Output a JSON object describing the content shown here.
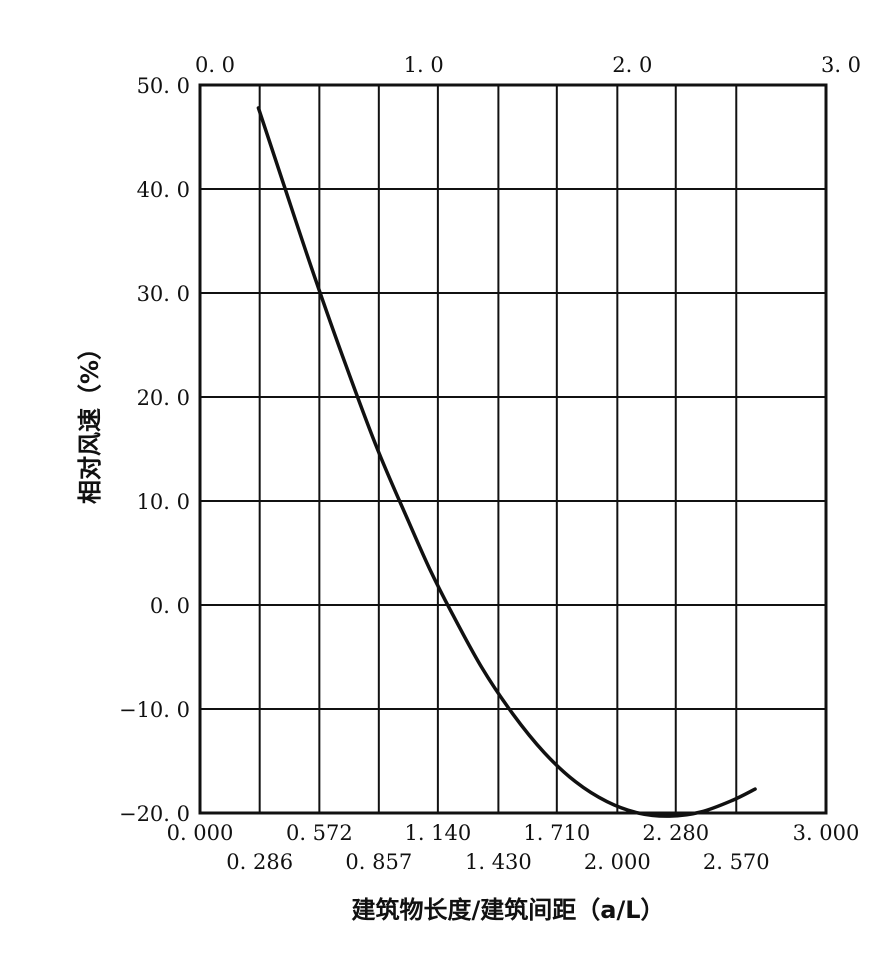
{
  "chart_data": {
    "type": "line",
    "ylabel": "相对风速（%）",
    "xlabel": "建筑物长度/建筑间距（a/L）",
    "xlim": [
      0,
      3
    ],
    "ylim": [
      -20,
      50
    ],
    "grid": true,
    "top_ticks": [
      "0. 0",
      "1. 0",
      "2. 0",
      "3. 0"
    ],
    "y_ticks": [
      {
        "value": 50,
        "label": "50. 0"
      },
      {
        "value": 40,
        "label": "40. 0"
      },
      {
        "value": 30,
        "label": "30. 0"
      },
      {
        "value": 20,
        "label": "20. 0"
      },
      {
        "value": 10,
        "label": "10. 0"
      },
      {
        "value": 0,
        "label": "0. 0"
      },
      {
        "value": -10,
        "label": "−10. 0"
      },
      {
        "value": -20,
        "label": "−20. 0"
      }
    ],
    "bottom_ticks_row1": [
      {
        "value": 0.0,
        "label": "0. 000"
      },
      {
        "value": 0.572,
        "label": "0. 572"
      },
      {
        "value": 1.14,
        "label": "1. 140"
      },
      {
        "value": 1.71,
        "label": "1. 710"
      },
      {
        "value": 2.28,
        "label": "2. 280"
      },
      {
        "value": 3.0,
        "label": "3. 000"
      }
    ],
    "bottom_ticks_row2": [
      {
        "value": 0.286,
        "label": "0. 286"
      },
      {
        "value": 0.857,
        "label": "0. 857"
      },
      {
        "value": 1.43,
        "label": "1. 430"
      },
      {
        "value": 2.0,
        "label": "2. 000"
      },
      {
        "value": 2.57,
        "label": "2. 570"
      }
    ],
    "series": [
      {
        "x": [
          0.28,
          0.4,
          0.55,
          0.7,
          0.85,
          1.0,
          1.1,
          1.2,
          1.35,
          1.5,
          1.65,
          1.8,
          1.95,
          2.1,
          2.25,
          2.4,
          2.55,
          2.66
        ],
        "y": [
          47.8,
          40.5,
          31.5,
          23.0,
          15.0,
          8.0,
          3.5,
          -0.5,
          -6.0,
          -10.5,
          -14.2,
          -17.0,
          -18.9,
          -20.0,
          -20.3,
          -19.9,
          -18.8,
          -17.7
        ]
      }
    ]
  }
}
